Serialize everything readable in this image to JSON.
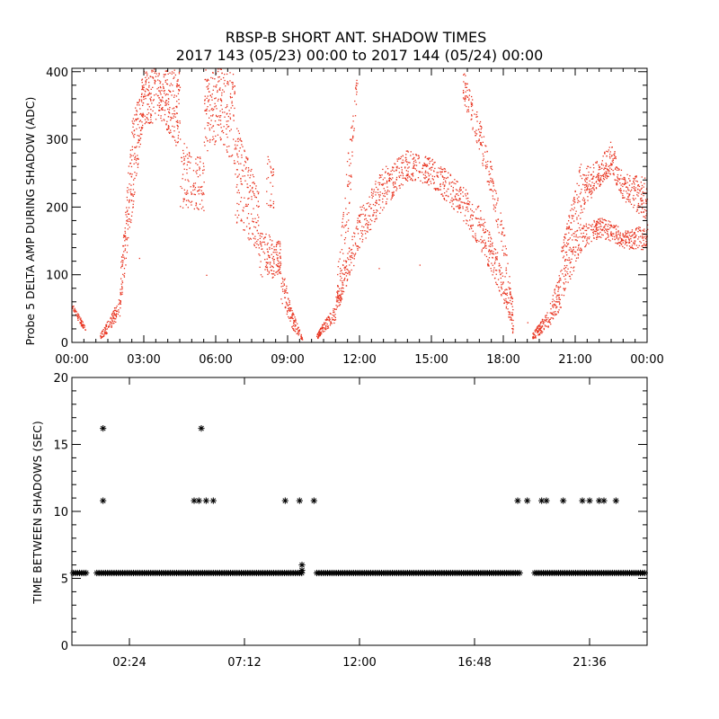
{
  "title_line1": "RBSP-B SHORT ANT. SHADOW TIMES",
  "title_line2": "2017 143 (05/23) 00:00 to 2017 144 (05/24) 00:00",
  "chart_data": [
    {
      "type": "scatter",
      "ylabel": "Probe 5 DELTA AMP DURING SHADOW (ADC)",
      "xlabel": "",
      "xlim": [
        0,
        24
      ],
      "ylim": [
        0,
        405
      ],
      "x_tick_labels": [
        "00:00",
        "03:00",
        "06:00",
        "09:00",
        "12:00",
        "15:00",
        "18:00",
        "21:00",
        "00:00"
      ],
      "y_tick_labels": [
        "0",
        "100",
        "200",
        "300",
        "400"
      ],
      "marker_color": "#e8321e",
      "series": [
        {
          "description_points_x_hours_y_adc": [
            [
              0.0,
              52
            ],
            [
              0.2,
              40
            ],
            [
              0.4,
              28
            ],
            [
              0.5,
              22
            ],
            [
              1.2,
              8
            ],
            [
              1.6,
              35
            ],
            [
              2.0,
              60
            ],
            [
              2.2,
              130
            ],
            [
              2.5,
              250
            ],
            [
              2.7,
              380
            ],
            [
              3.0,
              400
            ],
            [
              3.5,
              380
            ],
            [
              4.0,
              350
            ],
            [
              4.5,
              300
            ],
            [
              5.0,
              250
            ],
            [
              5.5,
              230
            ],
            [
              6.0,
              330
            ],
            [
              6.5,
              300
            ],
            [
              7.0,
              250
            ],
            [
              7.5,
              180
            ],
            [
              8.0,
              140
            ],
            [
              8.5,
              120
            ],
            [
              9.0,
              50
            ],
            [
              9.3,
              20
            ],
            [
              9.5,
              8
            ],
            [
              10.2,
              10
            ],
            [
              10.6,
              35
            ],
            [
              11.0,
              45
            ],
            [
              11.2,
              90
            ],
            [
              11.5,
              200
            ],
            [
              11.8,
              380
            ],
            [
              12.0,
              180
            ],
            [
              13.0,
              240
            ],
            [
              14.0,
              280
            ],
            [
              15.0,
              265
            ],
            [
              16.0,
              230
            ],
            [
              17.0,
              180
            ],
            [
              17.5,
              150
            ],
            [
              18.0,
              90
            ],
            [
              18.4,
              20
            ],
            [
              18.6,
              8
            ],
            [
              16.5,
              380
            ],
            [
              17.0,
              300
            ],
            [
              17.5,
              250
            ],
            [
              18.0,
              180
            ],
            [
              18.3,
              80
            ],
            [
              19.2,
              8
            ],
            [
              19.6,
              30
            ],
            [
              20.0,
              45
            ],
            [
              20.3,
              80
            ],
            [
              20.6,
              150
            ],
            [
              21.0,
              220
            ],
            [
              21.5,
              250
            ],
            [
              22.0,
              280
            ],
            [
              22.5,
              280
            ],
            [
              23.0,
              240
            ],
            [
              23.5,
              230
            ],
            [
              24.0,
              230
            ],
            [
              21.0,
              160
            ],
            [
              21.5,
              170
            ],
            [
              22.0,
              180
            ],
            [
              22.5,
              170
            ],
            [
              23.0,
              160
            ],
            [
              23.5,
              155
            ],
            [
              24.0,
              160
            ]
          ]
        }
      ]
    },
    {
      "type": "scatter",
      "ylabel": "TIME BETWEEN SHADOWS (SEC)",
      "xlabel": "",
      "xlim": [
        0,
        24
      ],
      "ylim": [
        0,
        20
      ],
      "x_tick_labels": [
        "02:24",
        "07:12",
        "12:00",
        "16:48",
        "21:36"
      ],
      "y_tick_labels": [
        "0",
        "5",
        "10",
        "15",
        "20"
      ],
      "marker": "asterisk",
      "marker_color": "#000000",
      "baseline_value": 5.4,
      "baseline_gaps_hours": [
        [
          0.6,
          1.0
        ],
        [
          9.6,
          10.2
        ],
        [
          18.7,
          19.3
        ]
      ],
      "points": [
        [
          1.3,
          16.2
        ],
        [
          1.3,
          10.8
        ],
        [
          5.4,
          16.2
        ],
        [
          5.1,
          10.8
        ],
        [
          5.3,
          10.8
        ],
        [
          5.6,
          10.8
        ],
        [
          5.9,
          10.8
        ],
        [
          8.9,
          10.8
        ],
        [
          9.5,
          10.8
        ],
        [
          10.1,
          10.8
        ],
        [
          9.6,
          6.0
        ],
        [
          9.6,
          5.6
        ],
        [
          18.6,
          10.8
        ],
        [
          19.0,
          10.8
        ],
        [
          19.6,
          10.8
        ],
        [
          19.8,
          10.8
        ],
        [
          20.5,
          10.8
        ],
        [
          21.3,
          10.8
        ],
        [
          21.6,
          10.8
        ],
        [
          22.0,
          10.8
        ],
        [
          22.2,
          10.8
        ],
        [
          22.7,
          10.8
        ]
      ]
    }
  ]
}
